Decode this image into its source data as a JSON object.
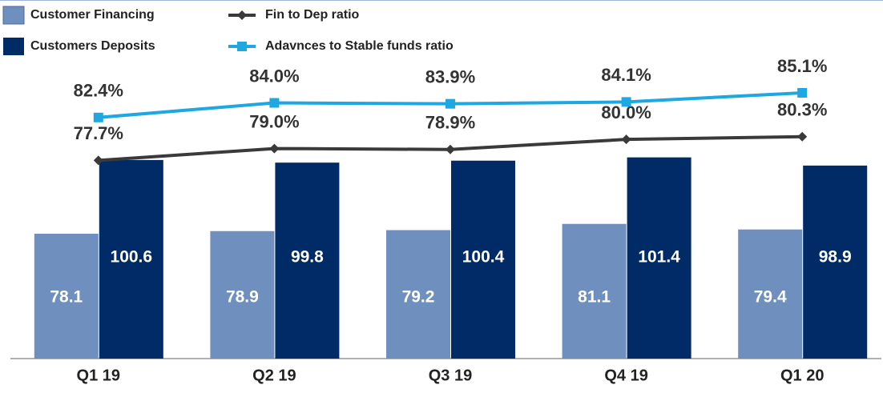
{
  "chart_data": {
    "type": "bar",
    "categories": [
      "Q1 19",
      "Q2 19",
      "Q3 19",
      "Q4 19",
      "Q1 20"
    ],
    "ylim": [
      40,
      125
    ],
    "y2lim": [
      56,
      86.5
    ],
    "series": [
      {
        "name": "Customer Financing",
        "type": "bar",
        "color": "#6f8fbf",
        "values": [
          78.1,
          78.9,
          79.2,
          81.1,
          79.4
        ]
      },
      {
        "name": "Customers Deposits",
        "type": "bar",
        "color": "#002b66",
        "values": [
          100.6,
          99.8,
          100.4,
          101.4,
          98.9
        ]
      },
      {
        "name": "Fin to Dep ratio",
        "type": "line",
        "marker": "diamond",
        "axis": "y2",
        "color": "#3a3a3a",
        "values": [
          77.7,
          79.0,
          78.9,
          80.0,
          80.3
        ],
        "value_labels": [
          "77.7%",
          "79.0%",
          "78.9%",
          "80.0%",
          "80.3%"
        ]
      },
      {
        "name": "Adavnces to Stable funds ratio",
        "type": "line",
        "marker": "square",
        "axis": "y2",
        "color": "#1ea7e1",
        "values": [
          82.4,
          84.0,
          83.9,
          84.1,
          85.1
        ],
        "value_labels": [
          "82.4%",
          "84.0%",
          "83.9%",
          "84.1%",
          "85.1%"
        ]
      }
    ]
  }
}
